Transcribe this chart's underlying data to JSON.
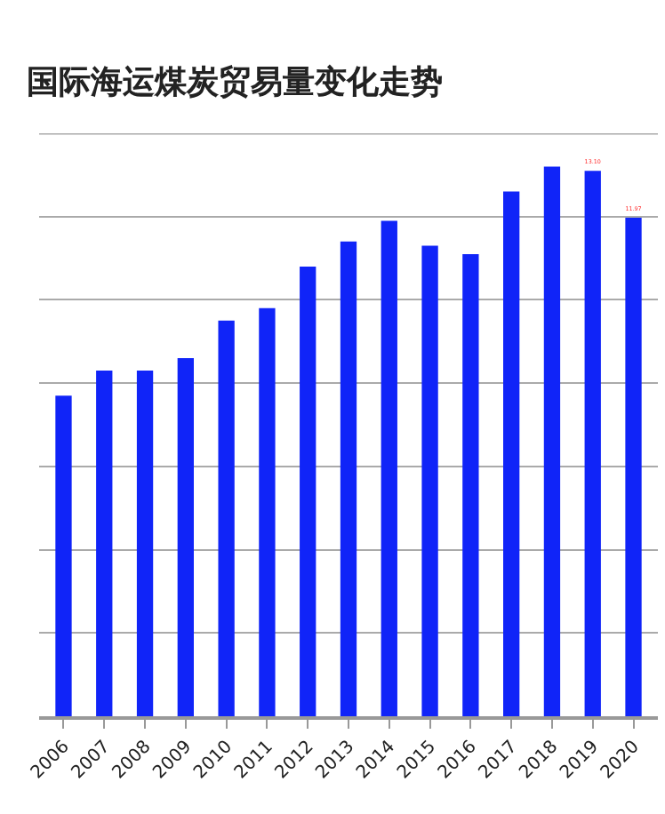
{
  "chart_data": {
    "type": "bar",
    "title": "国际海运煤炭贸易量变化走势",
    "categories": [
      "2006",
      "2007",
      "2008",
      "2009",
      "2010",
      "2011",
      "2012",
      "2013",
      "2014",
      "2015",
      "2016",
      "2017",
      "2018",
      "2019",
      "2020"
    ],
    "values": [
      7.7,
      8.3,
      8.3,
      8.6,
      9.5,
      9.8,
      10.8,
      11.4,
      11.9,
      11.3,
      11.1,
      12.6,
      13.2,
      13.1,
      11.97
    ],
    "value_labels": [
      null,
      null,
      null,
      null,
      null,
      null,
      null,
      null,
      null,
      null,
      null,
      null,
      null,
      "13.10",
      "11.97"
    ],
    "color": "#1024f8",
    "ylim": [
      0,
      14
    ],
    "yticks": [
      {
        "value": 0,
        "label": null
      },
      {
        "value": 2,
        "label": null
      },
      {
        "value": 4,
        "label": null
      },
      {
        "value": 6,
        "label": null
      },
      {
        "value": 8,
        "label": null
      },
      {
        "value": 10,
        "label": null
      },
      {
        "value": 12,
        "label": null
      },
      {
        "value": 14,
        "label": null
      }
    ],
    "tick_labels": "x",
    "grid": "y"
  }
}
